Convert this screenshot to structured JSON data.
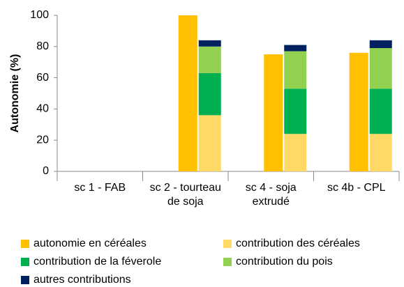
{
  "chart_data": {
    "type": "bar",
    "ylabel": "Autonomie (%)",
    "categories": [
      "sc 1 - FAB",
      "sc 2 - tourteau de soja",
      "sc 4 - soja extrudé",
      "sc 4b - CPL"
    ],
    "ylim": [
      0,
      100
    ],
    "yticks": [
      0,
      20,
      40,
      60,
      80,
      100
    ],
    "grid": false,
    "series": [
      {
        "name": "autonomie en céréales",
        "color": "#ffc000",
        "stack": 0,
        "values": [
          0,
          100,
          75,
          76
        ]
      },
      {
        "name": "contribution des céréales",
        "color": "#ffd966",
        "stack": 1,
        "values": [
          0,
          36,
          24,
          24
        ]
      },
      {
        "name": "contribution de la féverole",
        "color": "#00b050",
        "stack": 1,
        "values": [
          0,
          27,
          29,
          29
        ]
      },
      {
        "name": "contribution du pois",
        "color": "#92d050",
        "stack": 1,
        "values": [
          0,
          17,
          24,
          26
        ]
      },
      {
        "name": "autres contributions",
        "color": "#002060",
        "stack": 1,
        "values": [
          0,
          4,
          4,
          5
        ]
      }
    ]
  }
}
